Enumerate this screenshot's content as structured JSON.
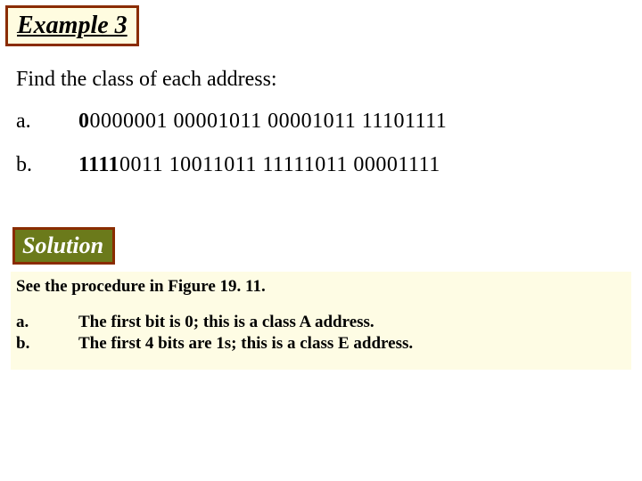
{
  "colors": {
    "border": "#8a2c00",
    "example_bg": "#fffce0",
    "solution_bg": "#6b7a1b",
    "solution_text": "#ffffff",
    "answer_bg": "#fefce4",
    "page_bg": "#ffffff",
    "text": "#000000"
  },
  "example": {
    "title": "Example 3",
    "prompt": "Find the class of each address:",
    "items": [
      {
        "letter": "a.",
        "lead": "0",
        "rest": "0000001  00001011   00001011 11101111"
      },
      {
        "letter": "b.",
        "lead": "1111",
        "rest": "0011  10011011   11111011 00001111"
      }
    ]
  },
  "solution": {
    "title": "Solution",
    "see": "See the procedure in Figure 19. 11.",
    "answers": [
      {
        "letter": "a.",
        "text": "The first bit is 0; this is a class A address."
      },
      {
        "letter": "b.",
        "text": "The first 4 bits are 1s; this is a class E address."
      }
    ]
  }
}
